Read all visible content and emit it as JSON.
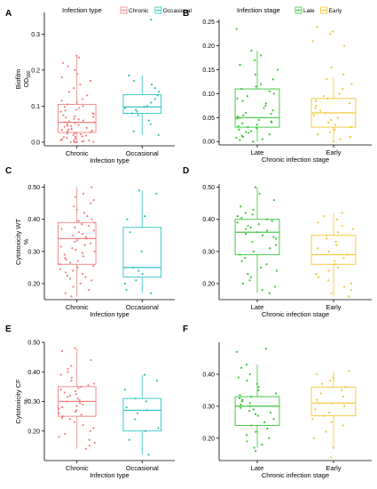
{
  "colors": {
    "chronic": "#f08080",
    "occasional": "#2ec4c4",
    "late": "#39c439",
    "early": "#f2c52c",
    "axis": "#000000"
  },
  "chart_data": [
    {
      "panel": "A",
      "type": "box_jitter",
      "xlabel": "Infection type",
      "ylabel": "Biofilm",
      "ylabel_sub": "OD",
      "ylabel_sub_index": "590",
      "ylim": [
        -0.01,
        0.36
      ],
      "yticks": [
        0.0,
        0.1,
        0.2,
        0.3
      ],
      "legend": {
        "title": "Infection  type",
        "items": [
          "Chronic",
          "Occasional"
        ],
        "position": "top"
      },
      "groups": [
        {
          "name": "Chronic",
          "color": "chronic",
          "box": {
            "min": 0.0,
            "q1": 0.027,
            "median": 0.055,
            "q3": 0.105,
            "max": 0.24
          },
          "points": [
            0.24,
            0.235,
            0.22,
            0.21,
            0.2,
            0.19,
            0.18,
            0.17,
            0.16,
            0.15,
            0.14,
            0.13,
            0.12,
            0.115,
            0.11,
            0.105,
            0.1,
            0.098,
            0.095,
            0.09,
            0.088,
            0.085,
            0.08,
            0.078,
            0.075,
            0.072,
            0.07,
            0.068,
            0.065,
            0.063,
            0.06,
            0.058,
            0.056,
            0.055,
            0.053,
            0.05,
            0.048,
            0.045,
            0.043,
            0.04,
            0.038,
            0.036,
            0.034,
            0.032,
            0.03,
            0.028,
            0.026,
            0.024,
            0.022,
            0.02,
            0.018,
            0.016,
            0.014,
            0.012,
            0.01,
            0.008,
            0.006,
            0.004,
            0.003,
            0.002,
            0.001,
            0.0,
            0.0,
            0.0,
            0.0,
            0.005,
            0.015,
            0.025,
            0.035,
            0.045
          ]
        },
        {
          "name": "Occasional",
          "color": "occasional",
          "box": {
            "min": 0.02,
            "q1": 0.08,
            "median": 0.098,
            "q3": 0.132,
            "max": 0.185
          },
          "points": [
            0.34,
            0.185,
            0.17,
            0.16,
            0.15,
            0.14,
            0.13,
            0.12,
            0.11,
            0.1,
            0.098,
            0.095,
            0.09,
            0.085,
            0.08,
            0.075,
            0.06,
            0.05,
            0.03,
            0.02
          ]
        }
      ]
    },
    {
      "panel": "B",
      "type": "box_jitter",
      "xlabel": "Chronic infection stage",
      "ylabel": "",
      "ylim": [
        -0.007,
        0.255
      ],
      "yticks": [
        0.0,
        0.05,
        0.1,
        0.15,
        0.2,
        0.25
      ],
      "legend": {
        "title": "Infection stage",
        "items": [
          "Late",
          "Early"
        ],
        "position": "top"
      },
      "groups": [
        {
          "name": "Late",
          "color": "late",
          "box": {
            "min": 0.0,
            "q1": 0.03,
            "median": 0.05,
            "q3": 0.11,
            "max": 0.19
          },
          "points": [
            0.235,
            0.19,
            0.18,
            0.17,
            0.16,
            0.15,
            0.14,
            0.13,
            0.12,
            0.115,
            0.11,
            0.105,
            0.1,
            0.095,
            0.09,
            0.085,
            0.08,
            0.075,
            0.07,
            0.065,
            0.06,
            0.058,
            0.055,
            0.052,
            0.05,
            0.048,
            0.045,
            0.042,
            0.04,
            0.038,
            0.035,
            0.032,
            0.03,
            0.028,
            0.025,
            0.022,
            0.02,
            0.018,
            0.015,
            0.012,
            0.01,
            0.008,
            0.005,
            0.003,
            0.0
          ]
        },
        {
          "name": "Early",
          "color": "early",
          "box": {
            "min": 0.0,
            "q1": 0.03,
            "median": 0.06,
            "q3": 0.09,
            "max": 0.135
          },
          "points": [
            0.24,
            0.23,
            0.225,
            0.21,
            0.2,
            0.155,
            0.14,
            0.13,
            0.12,
            0.11,
            0.1,
            0.095,
            0.09,
            0.085,
            0.08,
            0.075,
            0.07,
            0.065,
            0.06,
            0.055,
            0.05,
            0.045,
            0.04,
            0.035,
            0.03,
            0.025,
            0.02,
            0.015,
            0.01,
            0.005,
            0.0
          ]
        }
      ]
    },
    {
      "panel": "C",
      "type": "box_jitter",
      "xlabel": "Infection type",
      "ylabel": "Cytotoxicity WT",
      "ylabel_sub": "%",
      "ylim": [
        0.15,
        0.51
      ],
      "yticks": [
        0.2,
        0.3,
        0.4,
        0.5
      ],
      "groups": [
        {
          "name": "Chronic",
          "color": "chronic",
          "box": {
            "min": 0.16,
            "q1": 0.26,
            "median": 0.34,
            "q3": 0.39,
            "max": 0.5
          },
          "points": [
            0.5,
            0.48,
            0.47,
            0.46,
            0.45,
            0.44,
            0.43,
            0.42,
            0.41,
            0.4,
            0.395,
            0.39,
            0.385,
            0.38,
            0.375,
            0.37,
            0.365,
            0.36,
            0.355,
            0.35,
            0.345,
            0.34,
            0.335,
            0.33,
            0.325,
            0.32,
            0.315,
            0.31,
            0.305,
            0.3,
            0.295,
            0.29,
            0.285,
            0.28,
            0.275,
            0.27,
            0.265,
            0.26,
            0.255,
            0.25,
            0.245,
            0.24,
            0.235,
            0.23,
            0.225,
            0.22,
            0.215,
            0.21,
            0.2,
            0.19,
            0.18,
            0.17,
            0.16
          ]
        },
        {
          "name": "Occasional",
          "color": "occasional",
          "box": {
            "min": 0.17,
            "q1": 0.22,
            "median": 0.25,
            "q3": 0.375,
            "max": 0.49
          },
          "points": [
            0.49,
            0.48,
            0.41,
            0.4,
            0.36,
            0.3,
            0.25,
            0.24,
            0.23,
            0.21,
            0.2,
            0.18,
            0.17
          ]
        }
      ]
    },
    {
      "panel": "D",
      "type": "box_jitter",
      "xlabel": "Chronic infection stage",
      "ylabel": "",
      "ylim": [
        0.15,
        0.51
      ],
      "yticks": [
        0.2,
        0.3,
        0.4,
        0.5
      ],
      "groups": [
        {
          "name": "Late",
          "color": "late",
          "box": {
            "min": 0.17,
            "q1": 0.29,
            "median": 0.36,
            "q3": 0.4,
            "max": 0.5
          },
          "points": [
            0.5,
            0.48,
            0.46,
            0.44,
            0.43,
            0.42,
            0.415,
            0.41,
            0.405,
            0.4,
            0.395,
            0.39,
            0.385,
            0.38,
            0.375,
            0.37,
            0.365,
            0.36,
            0.355,
            0.35,
            0.345,
            0.34,
            0.33,
            0.32,
            0.31,
            0.3,
            0.29,
            0.28,
            0.27,
            0.26,
            0.25,
            0.24,
            0.23,
            0.22,
            0.21,
            0.2,
            0.19,
            0.18,
            0.17
          ]
        },
        {
          "name": "Early",
          "color": "early",
          "box": {
            "min": 0.16,
            "q1": 0.26,
            "median": 0.29,
            "q3": 0.35,
            "max": 0.42
          },
          "points": [
            0.42,
            0.41,
            0.4,
            0.39,
            0.38,
            0.37,
            0.36,
            0.35,
            0.34,
            0.33,
            0.32,
            0.31,
            0.3,
            0.29,
            0.28,
            0.27,
            0.26,
            0.25,
            0.24,
            0.23,
            0.22,
            0.21,
            0.2,
            0.19,
            0.18,
            0.17,
            0.16
          ]
        }
      ]
    },
    {
      "panel": "E",
      "type": "box_jitter",
      "xlabel": "Infection type",
      "ylabel": "Cytotoxicity CF",
      "ylabel_sub": "%",
      "ylim": [
        0.1,
        0.5
      ],
      "yticks": [
        0.2,
        0.3,
        0.4,
        0.5
      ],
      "groups": [
        {
          "name": "Chronic",
          "color": "chronic",
          "box": {
            "min": 0.14,
            "q1": 0.25,
            "median": 0.3,
            "q3": 0.35,
            "max": 0.48
          },
          "points": [
            0.48,
            0.47,
            0.44,
            0.42,
            0.41,
            0.4,
            0.39,
            0.38,
            0.37,
            0.36,
            0.355,
            0.35,
            0.345,
            0.34,
            0.335,
            0.33,
            0.325,
            0.32,
            0.315,
            0.31,
            0.305,
            0.3,
            0.295,
            0.29,
            0.285,
            0.28,
            0.275,
            0.27,
            0.265,
            0.26,
            0.255,
            0.25,
            0.245,
            0.24,
            0.23,
            0.22,
            0.21,
            0.2,
            0.19,
            0.18,
            0.17,
            0.16,
            0.15,
            0.14
          ]
        },
        {
          "name": "Occasional",
          "color": "occasional",
          "box": {
            "min": 0.12,
            "q1": 0.2,
            "median": 0.27,
            "q3": 0.31,
            "max": 0.39
          },
          "points": [
            0.39,
            0.37,
            0.34,
            0.31,
            0.3,
            0.28,
            0.27,
            0.26,
            0.24,
            0.21,
            0.2,
            0.17,
            0.12
          ]
        }
      ]
    },
    {
      "panel": "F",
      "type": "box_jitter",
      "xlabel": "Chronic infection stage",
      "ylabel": "",
      "ylim": [
        0.13,
        0.5
      ],
      "yticks": [
        0.2,
        0.3,
        0.4
      ],
      "groups": [
        {
          "name": "Late",
          "color": "late",
          "box": {
            "min": 0.17,
            "q1": 0.24,
            "median": 0.3,
            "q3": 0.33,
            "max": 0.43
          },
          "points": [
            0.48,
            0.47,
            0.43,
            0.42,
            0.4,
            0.39,
            0.38,
            0.37,
            0.36,
            0.35,
            0.34,
            0.335,
            0.33,
            0.325,
            0.32,
            0.315,
            0.31,
            0.305,
            0.3,
            0.295,
            0.29,
            0.285,
            0.28,
            0.275,
            0.27,
            0.26,
            0.25,
            0.24,
            0.23,
            0.22,
            0.21,
            0.2,
            0.19,
            0.18,
            0.17,
            0.16
          ]
        },
        {
          "name": "Early",
          "color": "early",
          "box": {
            "min": 0.17,
            "q1": 0.27,
            "median": 0.31,
            "q3": 0.36,
            "max": 0.41
          },
          "points": [
            0.41,
            0.4,
            0.39,
            0.38,
            0.37,
            0.36,
            0.35,
            0.34,
            0.33,
            0.32,
            0.31,
            0.3,
            0.29,
            0.28,
            0.27,
            0.26,
            0.25,
            0.24,
            0.22,
            0.2,
            0.17,
            0.14
          ]
        }
      ]
    }
  ]
}
